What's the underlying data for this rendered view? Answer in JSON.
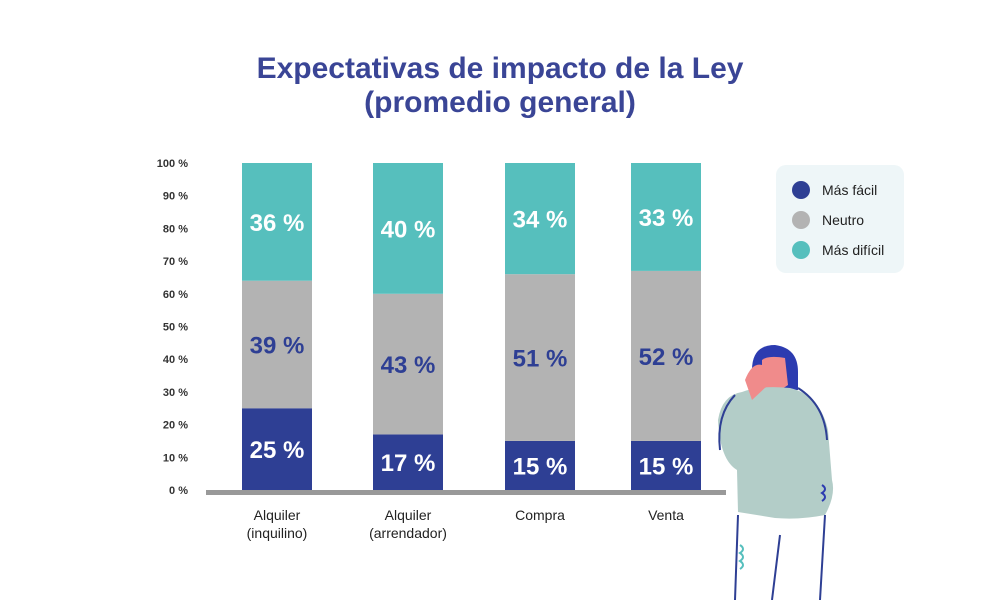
{
  "chart_data": {
    "type": "bar",
    "stacked": true,
    "title": "Expectativas de impacto de la Ley",
    "subtitle": "(promedio general)",
    "categories": [
      [
        "Alquiler",
        "(inquilino)"
      ],
      [
        "Alquiler",
        "(arrendador)"
      ],
      [
        "Compra",
        ""
      ],
      [
        "Venta",
        ""
      ]
    ],
    "series": [
      {
        "name": "Más fácil",
        "color": "#2e3f94",
        "label_color": "#ffffff",
        "values": [
          25,
          17,
          15,
          15
        ]
      },
      {
        "name": "Neutro",
        "color": "#b3b3b3",
        "label_color": "#2e3f94",
        "values": [
          39,
          43,
          51,
          52
        ]
      },
      {
        "name": "Más difícil",
        "color": "#56bfbd",
        "label_color": "#ffffff",
        "values": [
          36,
          40,
          34,
          33
        ]
      }
    ],
    "yticks": [
      "0 %",
      "10 %",
      "20 %",
      "30 %",
      "40 %",
      "50 %",
      "60 %",
      "70 %",
      "80 %",
      "90 %",
      "100 %"
    ],
    "ylim": [
      0,
      100
    ],
    "legend_placement": "right",
    "grid": false
  }
}
